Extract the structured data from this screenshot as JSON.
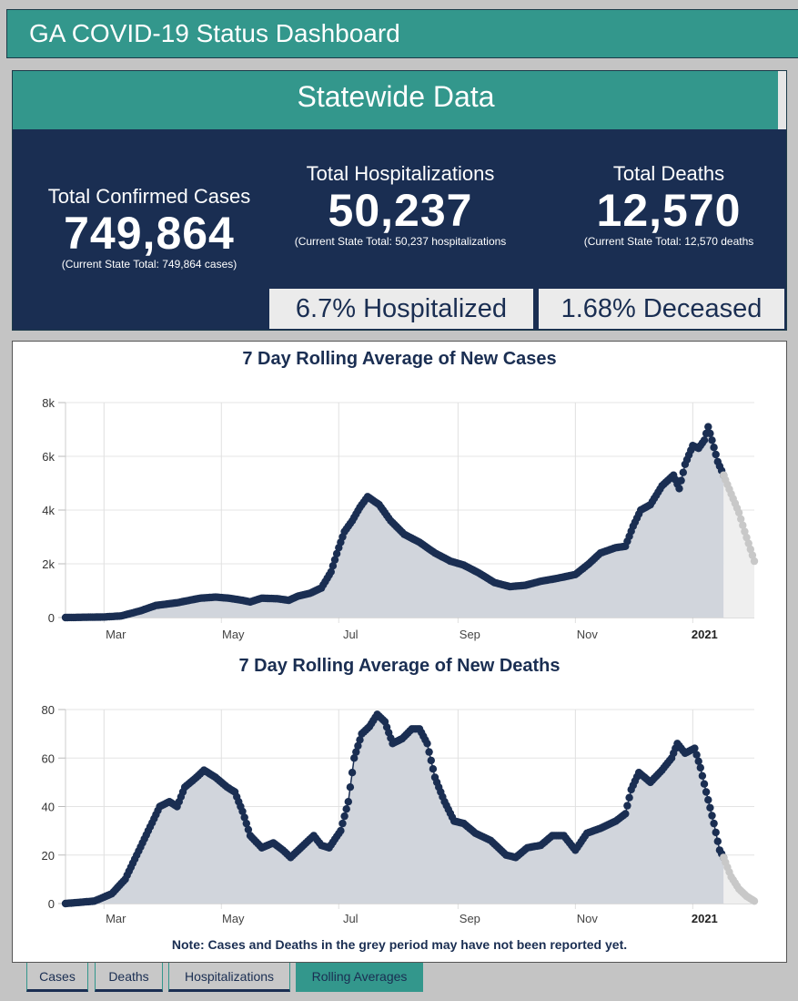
{
  "app": {
    "title": "GA COVID-19 Status Dashboard"
  },
  "statewide": {
    "title": "Statewide Data",
    "cases": {
      "label": "Total Confirmed Cases",
      "value": "749,864",
      "sub": "(Current State Total: 749,864 cases)"
    },
    "hospitalizations": {
      "label": "Total Hospitalizations",
      "value": "50,237",
      "sub": "(Current State Total: 50,237 hospitalizations"
    },
    "deaths": {
      "label": "Total Deaths",
      "value": "12,570",
      "sub": "(Current State Total: 12,570 deaths"
    },
    "hospitalized_pct": "6.7% Hospitalized",
    "deceased_pct": "1.68% Deceased"
  },
  "note": "Note: Cases and Deaths in the grey period may have not been reported yet.",
  "tabs": [
    {
      "label": "Cases",
      "active": false
    },
    {
      "label": "Deaths",
      "active": false
    },
    {
      "label": "Hospitalizations",
      "active": false
    },
    {
      "label": "Rolling Averages",
      "active": true
    }
  ],
  "colors": {
    "teal": "#33978c",
    "navy": "#1a2e52",
    "area": "#d1d5dc",
    "grey_points": "#c8c8c8",
    "grey_area": "#efefef"
  },
  "chart_data": [
    {
      "type": "area",
      "title": "7 Day Rolling Average of New Cases",
      "xlabel": "",
      "ylabel": "",
      "x_start": "2020-02-10",
      "x_end": "2021-02-02",
      "grey_start": "2021-01-17",
      "ylim": [
        0,
        8000
      ],
      "yticks": [
        0,
        2000,
        4000,
        6000,
        8000
      ],
      "ytick_labels": [
        "0",
        "2k",
        "4k",
        "6k",
        "8k"
      ],
      "xticks": [
        "2020-03-01",
        "2020-05-01",
        "2020-07-01",
        "2020-09-01",
        "2020-11-01",
        "2021-01-01"
      ],
      "xtick_labels": [
        "Mar",
        "May",
        "Jul",
        "Sep",
        "Nov",
        "2021"
      ],
      "grid": true,
      "legend": "none",
      "points": [
        [
          "2020-02-10",
          0
        ],
        [
          "2020-03-01",
          20
        ],
        [
          "2020-03-10",
          60
        ],
        [
          "2020-03-20",
          250
        ],
        [
          "2020-03-28",
          450
        ],
        [
          "2020-04-08",
          550
        ],
        [
          "2020-04-20",
          720
        ],
        [
          "2020-04-28",
          760
        ],
        [
          "2020-05-05",
          720
        ],
        [
          "2020-05-12",
          640
        ],
        [
          "2020-05-16",
          580
        ],
        [
          "2020-05-22",
          720
        ],
        [
          "2020-05-30",
          700
        ],
        [
          "2020-06-05",
          640
        ],
        [
          "2020-06-10",
          800
        ],
        [
          "2020-06-16",
          900
        ],
        [
          "2020-06-22",
          1100
        ],
        [
          "2020-06-27",
          1700
        ],
        [
          "2020-07-01",
          2600
        ],
        [
          "2020-07-04",
          3200
        ],
        [
          "2020-07-08",
          3600
        ],
        [
          "2020-07-12",
          4100
        ],
        [
          "2020-07-16",
          4500
        ],
        [
          "2020-07-22",
          4200
        ],
        [
          "2020-07-28",
          3600
        ],
        [
          "2020-08-04",
          3100
        ],
        [
          "2020-08-12",
          2800
        ],
        [
          "2020-08-20",
          2400
        ],
        [
          "2020-08-28",
          2100
        ],
        [
          "2020-09-04",
          1950
        ],
        [
          "2020-09-12",
          1650
        ],
        [
          "2020-09-20",
          1300
        ],
        [
          "2020-09-28",
          1150
        ],
        [
          "2020-10-06",
          1200
        ],
        [
          "2020-10-14",
          1350
        ],
        [
          "2020-10-22",
          1450
        ],
        [
          "2020-11-01",
          1600
        ],
        [
          "2020-11-08",
          2000
        ],
        [
          "2020-11-14",
          2400
        ],
        [
          "2020-11-22",
          2600
        ],
        [
          "2020-11-27",
          2650
        ],
        [
          "2020-12-01",
          3400
        ],
        [
          "2020-12-05",
          4000
        ],
        [
          "2020-12-10",
          4200
        ],
        [
          "2020-12-16",
          4900
        ],
        [
          "2020-12-22",
          5300
        ],
        [
          "2020-12-25",
          4800
        ],
        [
          "2020-12-28",
          5700
        ],
        [
          "2021-01-01",
          6400
        ],
        [
          "2021-01-04",
          6300
        ],
        [
          "2021-01-07",
          6600
        ],
        [
          "2021-01-09",
          7100
        ],
        [
          "2021-01-11",
          6600
        ],
        [
          "2021-01-14",
          5800
        ],
        [
          "2021-01-17",
          5300
        ],
        [
          "2021-01-21",
          4600
        ],
        [
          "2021-01-25",
          3900
        ],
        [
          "2021-01-28",
          3200
        ],
        [
          "2021-02-02",
          2100
        ]
      ]
    },
    {
      "type": "area",
      "title": "7 Day Rolling Average of New Deaths",
      "xlabel": "",
      "ylabel": "",
      "x_start": "2020-02-10",
      "x_end": "2021-02-02",
      "grey_start": "2021-01-17",
      "ylim": [
        0,
        80
      ],
      "yticks": [
        0,
        20,
        40,
        60,
        80
      ],
      "ytick_labels": [
        "0",
        "20",
        "40",
        "60",
        "80"
      ],
      "xticks": [
        "2020-03-01",
        "2020-05-01",
        "2020-07-01",
        "2020-09-01",
        "2020-11-01",
        "2021-01-01"
      ],
      "xtick_labels": [
        "Mar",
        "May",
        "Jul",
        "Sep",
        "Nov",
        "2021"
      ],
      "grid": true,
      "legend": "none",
      "points": [
        [
          "2020-02-10",
          0
        ],
        [
          "2020-02-25",
          1
        ],
        [
          "2020-03-05",
          4
        ],
        [
          "2020-03-12",
          10
        ],
        [
          "2020-03-18",
          20
        ],
        [
          "2020-03-24",
          30
        ],
        [
          "2020-03-30",
          40
        ],
        [
          "2020-04-04",
          42
        ],
        [
          "2020-04-08",
          40
        ],
        [
          "2020-04-12",
          48
        ],
        [
          "2020-04-18",
          52
        ],
        [
          "2020-04-22",
          55
        ],
        [
          "2020-04-28",
          52
        ],
        [
          "2020-05-04",
          48
        ],
        [
          "2020-05-08",
          46
        ],
        [
          "2020-05-12",
          38
        ],
        [
          "2020-05-16",
          28
        ],
        [
          "2020-05-22",
          23
        ],
        [
          "2020-05-28",
          25
        ],
        [
          "2020-06-02",
          22
        ],
        [
          "2020-06-06",
          19
        ],
        [
          "2020-06-10",
          22
        ],
        [
          "2020-06-14",
          25
        ],
        [
          "2020-06-18",
          28
        ],
        [
          "2020-06-22",
          24
        ],
        [
          "2020-06-26",
          23
        ],
        [
          "2020-07-02",
          30
        ],
        [
          "2020-07-06",
          42
        ],
        [
          "2020-07-09",
          60
        ],
        [
          "2020-07-13",
          70
        ],
        [
          "2020-07-17",
          73
        ],
        [
          "2020-07-21",
          78
        ],
        [
          "2020-07-25",
          75
        ],
        [
          "2020-07-29",
          66
        ],
        [
          "2020-08-03",
          68
        ],
        [
          "2020-08-08",
          72
        ],
        [
          "2020-08-12",
          72
        ],
        [
          "2020-08-16",
          66
        ],
        [
          "2020-08-20",
          52
        ],
        [
          "2020-08-25",
          42
        ],
        [
          "2020-08-30",
          34
        ],
        [
          "2020-09-04",
          33
        ],
        [
          "2020-09-10",
          29
        ],
        [
          "2020-09-18",
          26
        ],
        [
          "2020-09-26",
          20
        ],
        [
          "2020-10-01",
          19
        ],
        [
          "2020-10-07",
          23
        ],
        [
          "2020-10-14",
          24
        ],
        [
          "2020-10-20",
          28
        ],
        [
          "2020-10-26",
          28
        ],
        [
          "2020-11-01",
          22
        ],
        [
          "2020-11-07",
          29
        ],
        [
          "2020-11-14",
          31
        ],
        [
          "2020-11-22",
          34
        ],
        [
          "2020-11-27",
          37
        ],
        [
          "2020-11-30",
          47
        ],
        [
          "2020-12-04",
          54
        ],
        [
          "2020-12-10",
          50
        ],
        [
          "2020-12-16",
          55
        ],
        [
          "2020-12-21",
          60
        ],
        [
          "2020-12-24",
          66
        ],
        [
          "2020-12-28",
          62
        ],
        [
          "2021-01-02",
          64
        ],
        [
          "2021-01-05",
          56
        ],
        [
          "2021-01-08",
          46
        ],
        [
          "2021-01-12",
          33
        ],
        [
          "2021-01-15",
          22
        ],
        [
          "2021-01-17",
          19
        ],
        [
          "2021-01-21",
          11
        ],
        [
          "2021-01-25",
          6
        ],
        [
          "2021-01-29",
          3
        ],
        [
          "2021-02-02",
          1
        ]
      ]
    }
  ]
}
